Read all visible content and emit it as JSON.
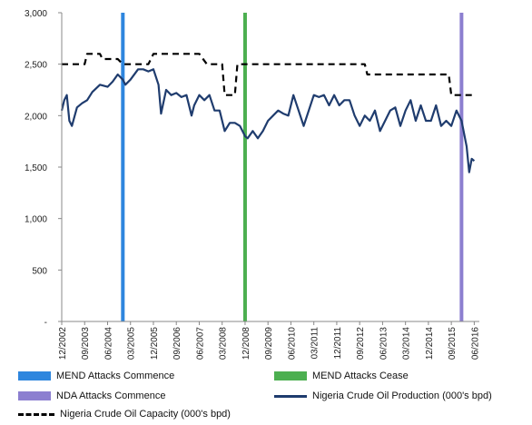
{
  "chart_data": {
    "type": "line",
    "ylim": [
      0,
      3000
    ],
    "y_ticks": [
      "3,000",
      "2,500",
      "2,000",
      "1,500",
      "1,000",
      "500",
      "-"
    ],
    "y_tick_values": [
      3000,
      2500,
      2000,
      1500,
      1000,
      500,
      0
    ],
    "x_tick_labels": [
      "12/2002",
      "09/2003",
      "06/2004",
      "03/2005",
      "12/2005",
      "09/2006",
      "06/2007",
      "03/2008",
      "12/2008",
      "09/2009",
      "06/2010",
      "03/2011",
      "12/2011",
      "09/2012",
      "06/2013",
      "03/2014",
      "12/2014",
      "09/2015",
      "06/2016"
    ],
    "x_tick_dates": [
      "2002-12",
      "2003-09",
      "2004-06",
      "2005-03",
      "2005-12",
      "2006-09",
      "2007-06",
      "2008-03",
      "2008-12",
      "2009-09",
      "2010-06",
      "2011-03",
      "2011-12",
      "2012-09",
      "2013-06",
      "2014-03",
      "2014-12",
      "2015-09",
      "2016-06"
    ],
    "grid": false,
    "legend_position": "bottom",
    "events": [
      {
        "name": "MEND Attacks Commence",
        "date": "2004-12",
        "color": "#2e86de"
      },
      {
        "name": "MEND Attacks Cease",
        "date": "2008-12",
        "color": "#4caf50"
      },
      {
        "name": "NDA Attacks Commence",
        "date": "2016-01",
        "color": "#8c7fd0"
      }
    ],
    "series": [
      {
        "name": "Nigeria Crude Oil Production (000's bpd)",
        "style": "solid",
        "color": "#1f3c6e",
        "x": [
          "2002-12",
          "2003-01",
          "2003-02",
          "2003-03",
          "2003-04",
          "2003-06",
          "2003-08",
          "2003-10",
          "2003-12",
          "2004-03",
          "2004-06",
          "2004-08",
          "2004-10",
          "2004-12",
          "2005-01",
          "2005-03",
          "2005-06",
          "2005-08",
          "2005-10",
          "2005-12",
          "2006-02",
          "2006-03",
          "2006-05",
          "2006-07",
          "2006-09",
          "2006-11",
          "2007-01",
          "2007-03",
          "2007-04",
          "2007-06",
          "2007-08",
          "2007-10",
          "2007-12",
          "2008-02",
          "2008-04",
          "2008-06",
          "2008-08",
          "2008-10",
          "2008-12",
          "2009-01",
          "2009-03",
          "2009-05",
          "2009-07",
          "2009-09",
          "2009-11",
          "2010-01",
          "2010-03",
          "2010-05",
          "2010-07",
          "2010-09",
          "2010-11",
          "2011-01",
          "2011-03",
          "2011-05",
          "2011-07",
          "2011-09",
          "2011-11",
          "2012-01",
          "2012-03",
          "2012-05",
          "2012-07",
          "2012-09",
          "2012-11",
          "2013-01",
          "2013-03",
          "2013-05",
          "2013-07",
          "2013-09",
          "2013-11",
          "2014-01",
          "2014-03",
          "2014-05",
          "2014-07",
          "2014-09",
          "2014-11",
          "2015-01",
          "2015-03",
          "2015-05",
          "2015-07",
          "2015-09",
          "2015-11",
          "2016-01",
          "2016-03",
          "2016-04",
          "2016-05",
          "2016-06"
        ],
        "y": [
          2050,
          2150,
          2200,
          1950,
          1900,
          2080,
          2120,
          2150,
          2230,
          2300,
          2280,
          2330,
          2400,
          2350,
          2300,
          2350,
          2450,
          2450,
          2430,
          2450,
          2300,
          2020,
          2250,
          2200,
          2220,
          2180,
          2200,
          2000,
          2100,
          2200,
          2150,
          2200,
          2050,
          2050,
          1850,
          1930,
          1930,
          1900,
          1800,
          1780,
          1850,
          1780,
          1850,
          1950,
          2000,
          2050,
          2020,
          2000,
          2200,
          2050,
          1900,
          2050,
          2200,
          2180,
          2200,
          2100,
          2200,
          2100,
          2150,
          2150,
          2000,
          1900,
          2000,
          1950,
          2050,
          1850,
          1950,
          2050,
          2080,
          1900,
          2050,
          2150,
          1950,
          2100,
          1950,
          1950,
          2100,
          1900,
          1950,
          1900,
          2050,
          1950,
          1700,
          1450,
          1580,
          1560
        ]
      },
      {
        "name": "Nigeria Crude Oil Capacity (000's bpd)",
        "style": "dashed",
        "color": "#000000",
        "x": [
          "2002-12",
          "2003-06",
          "2003-07",
          "2003-09",
          "2003-10",
          "2004-03",
          "2004-04",
          "2004-07",
          "2004-08",
          "2004-10",
          "2004-12",
          "2005-01",
          "2005-08",
          "2005-09",
          "2005-10",
          "2005-11",
          "2005-12",
          "2007-05",
          "2007-06",
          "2007-09",
          "2008-02",
          "2008-03",
          "2008-04",
          "2008-07",
          "2008-08",
          "2008-09",
          "2012-09",
          "2012-11",
          "2012-12",
          "2014-09",
          "2015-06",
          "2015-08",
          "2015-09",
          "2016-06"
        ],
        "y": [
          2500,
          2500,
          2500,
          2500,
          2600,
          2600,
          2550,
          2550,
          2550,
          2550,
          2500,
          2500,
          2500,
          2500,
          2500,
          2550,
          2600,
          2600,
          2600,
          2500,
          2500,
          2500,
          2200,
          2200,
          2200,
          2500,
          2500,
          2500,
          2400,
          2400,
          2400,
          2400,
          2200,
          2200
        ]
      }
    ]
  }
}
